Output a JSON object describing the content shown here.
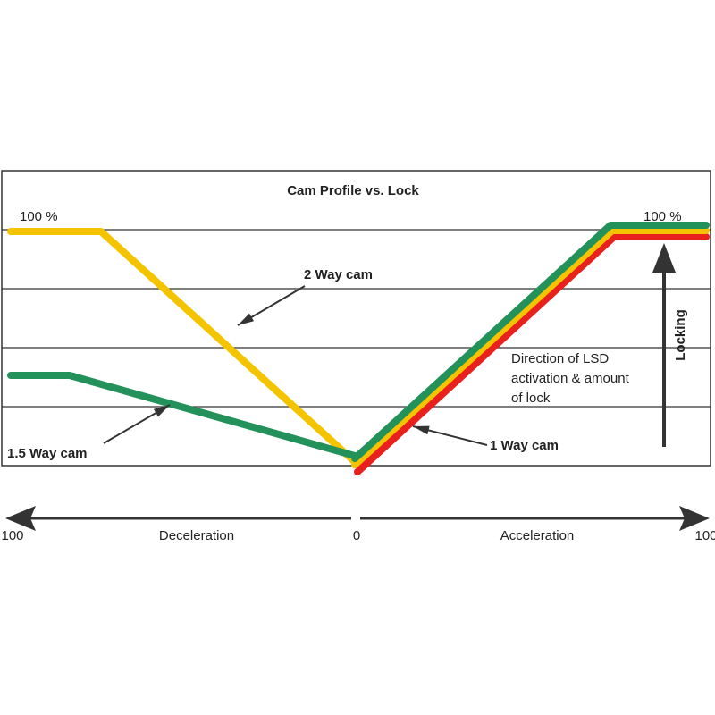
{
  "title": "Cam Profile vs. Lock",
  "labels": {
    "left_max": "100 %",
    "right_max": "100 %",
    "two_way": "2 Way cam",
    "one_five_way": "1.5 Way cam",
    "one_way": "1 Way cam",
    "direction_lines": [
      "Direction of LSD",
      "activation & amount",
      "of lock"
    ],
    "locking": "Locking"
  },
  "axis": {
    "left_end": "100",
    "left_label": "Deceleration",
    "center": "0",
    "right_label": "Acceleration",
    "right_end": "100"
  },
  "colors": {
    "two_way": "#f5c400",
    "one_five_way": "#23925a",
    "one_way": "#e8201e",
    "grid": "#333333",
    "arrow": "#333333"
  }
}
